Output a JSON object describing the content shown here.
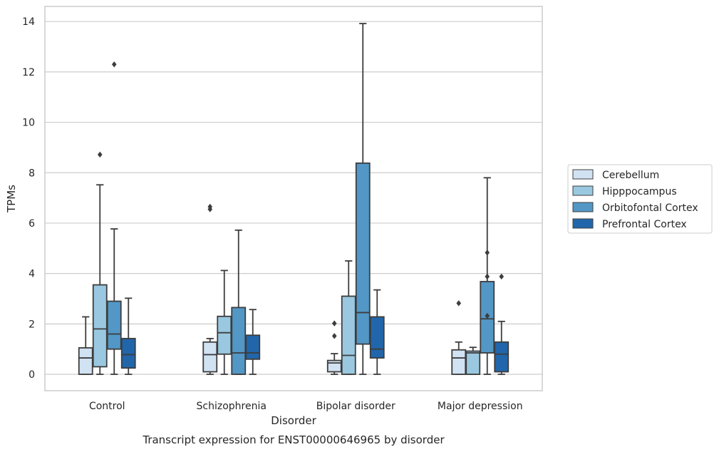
{
  "caption": "Transcript expression for ENST00000646965 by disorder",
  "chart_data": {
    "type": "boxplot",
    "title": "",
    "xlabel": "Disorder",
    "ylabel": "TPMs",
    "ylim": [
      -0.65,
      14.6
    ],
    "yticks": [
      0,
      2,
      4,
      6,
      8,
      10,
      12,
      14
    ],
    "grid": "horizontal",
    "legend_position": "right",
    "categories": [
      "Control",
      "Schizophrenia",
      "Bipolar disorder",
      "Major depression"
    ],
    "series": [
      {
        "name": "Cerebellum",
        "color": "#d1e2f2",
        "boxes": [
          {
            "whislo": 0.0,
            "q1": 0.0,
            "med": 0.65,
            "q3": 1.05,
            "whishi": 2.28,
            "fliers": []
          },
          {
            "whislo": 0.0,
            "q1": 0.1,
            "med": 0.78,
            "q3": 1.28,
            "whishi": 1.42,
            "fliers": [
              6.55,
              6.65
            ]
          },
          {
            "whislo": 0.0,
            "q1": 0.1,
            "med": 0.45,
            "q3": 0.55,
            "whishi": 0.82,
            "fliers": [
              1.52,
              2.02
            ]
          },
          {
            "whislo": 0.0,
            "q1": 0.0,
            "med": 0.65,
            "q3": 0.97,
            "whishi": 1.28,
            "fliers": [
              2.82
            ]
          }
        ]
      },
      {
        "name": "Hipppocampus",
        "color": "#9ac8e0",
        "boxes": [
          {
            "whislo": 0.0,
            "q1": 0.3,
            "med": 1.8,
            "q3": 3.55,
            "whishi": 7.52,
            "fliers": [
              8.72
            ]
          },
          {
            "whislo": 0.0,
            "q1": 0.8,
            "med": 1.65,
            "q3": 2.3,
            "whishi": 4.12,
            "fliers": []
          },
          {
            "whislo": 0.0,
            "q1": 0.0,
            "med": 0.75,
            "q3": 3.1,
            "whishi": 4.5,
            "fliers": []
          },
          {
            "whislo": 0.0,
            "q1": 0.0,
            "med": 0.85,
            "q3": 0.92,
            "whishi": 1.07,
            "fliers": []
          }
        ]
      },
      {
        "name": "Orbitofontal Cortex",
        "color": "#5297c6",
        "boxes": [
          {
            "whislo": 0.0,
            "q1": 1.0,
            "med": 1.6,
            "q3": 2.9,
            "whishi": 5.77,
            "fliers": [
              12.3
            ]
          },
          {
            "whislo": 0.0,
            "q1": 0.0,
            "med": 0.85,
            "q3": 2.65,
            "whishi": 5.72,
            "fliers": []
          },
          {
            "whislo": 0.0,
            "q1": 1.2,
            "med": 2.45,
            "q3": 8.38,
            "whishi": 13.92,
            "fliers": []
          },
          {
            "whislo": 0.0,
            "q1": 0.85,
            "med": 2.2,
            "q3": 3.68,
            "whishi": 7.8,
            "fliers": [
              2.32,
              3.88,
              4.83
            ]
          }
        ]
      },
      {
        "name": "Prefrontal Cortex",
        "color": "#2166ab",
        "boxes": [
          {
            "whislo": 0.0,
            "q1": 0.25,
            "med": 0.78,
            "q3": 1.42,
            "whishi": 3.02,
            "fliers": []
          },
          {
            "whislo": 0.0,
            "q1": 0.6,
            "med": 0.85,
            "q3": 1.55,
            "whishi": 2.57,
            "fliers": []
          },
          {
            "whislo": 0.0,
            "q1": 0.65,
            "med": 1.0,
            "q3": 2.28,
            "whishi": 3.35,
            "fliers": []
          },
          {
            "whislo": 0.0,
            "q1": 0.1,
            "med": 0.8,
            "q3": 1.28,
            "whishi": 2.1,
            "fliers": [
              3.88
            ]
          }
        ]
      }
    ]
  }
}
